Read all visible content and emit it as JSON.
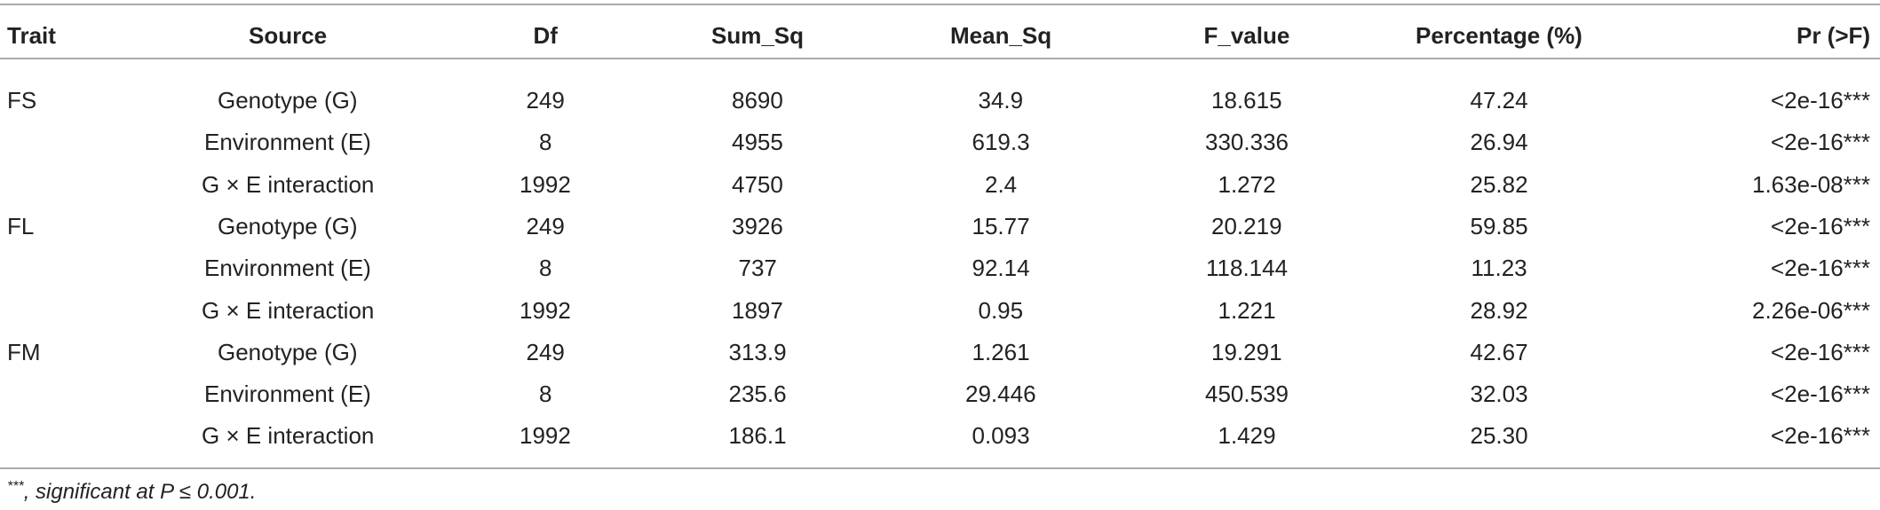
{
  "table": {
    "header": [
      "Trait",
      "Source",
      "Df",
      "Sum_Sq",
      "Mean_Sq",
      "F_value",
      "Percentage (%)",
      "Pr (>F)"
    ],
    "rows": [
      {
        "trait": "FS",
        "values": [
          "Genotype (G)",
          "249",
          "8690",
          "34.9",
          "18.615",
          "47.24",
          "<2e-16***"
        ]
      },
      {
        "values": [
          "Environment (E)",
          "8",
          "4955",
          "619.3",
          "330.336",
          "26.94",
          "<2e-16***"
        ]
      },
      {
        "values": [
          "G × E interaction",
          "1992",
          "4750",
          "2.4",
          "1.272",
          "25.82",
          "1.63e-08***"
        ]
      },
      {
        "trait": "FL",
        "values": [
          "Genotype (G)",
          "249",
          "3926",
          "15.77",
          "20.219",
          "59.85",
          "<2e-16***"
        ]
      },
      {
        "values": [
          "Environment (E)",
          "8",
          "737",
          "92.14",
          "118.144",
          "11.23",
          "<2e-16***"
        ]
      },
      {
        "values": [
          "G × E interaction",
          "1992",
          "1897",
          "0.95",
          "1.221",
          "28.92",
          "2.26e-06***"
        ]
      },
      {
        "trait": "FM",
        "values": [
          "Genotype (G)",
          "249",
          "313.9",
          "1.261",
          "19.291",
          "42.67",
          "<2e-16***"
        ]
      },
      {
        "values": [
          "Environment (E)",
          "8",
          "235.6",
          "29.446",
          "450.539",
          "32.03",
          "<2e-16***"
        ]
      },
      {
        "values": [
          "G × E interaction",
          "1992",
          "186.1",
          "0.093",
          "1.429",
          "25.30",
          "<2e-16***"
        ]
      }
    ],
    "footnote": {
      "mark": "***",
      "text": ", significant at P ≤ 0.001."
    }
  }
}
